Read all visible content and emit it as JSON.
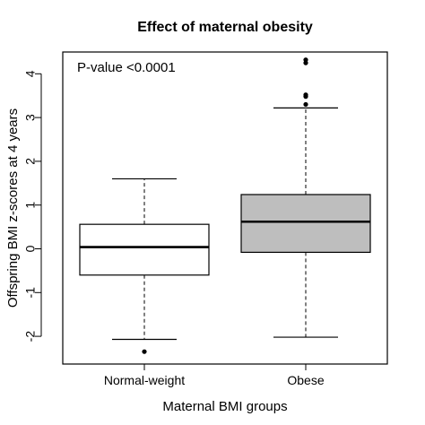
{
  "chart_data": {
    "type": "boxplot",
    "title": "Effect of maternal obesity",
    "xlabel": "Maternal BMI groups",
    "ylabel": "Offspring BMI z-scores at 4 years",
    "ylim": [
      -2.6,
      4.6
    ],
    "yticks": [
      -2,
      -1,
      0,
      1,
      2,
      3,
      4
    ],
    "ytick_labels": [
      "-2",
      "-1",
      "0",
      "1",
      "2",
      "3",
      "4"
    ],
    "grid": false,
    "annotation": "P-value <0.0001",
    "annotation_position": "top-left",
    "categories": [
      "Normal-weight",
      "Obese"
    ],
    "boxes": [
      {
        "category": "Normal-weight",
        "whisker_low": -2.07,
        "q1": -0.6,
        "median": 0.04,
        "q3": 0.56,
        "whisker_high": 1.6,
        "outliers": [
          -2.35
        ],
        "fill": "#ffffff"
      },
      {
        "category": "Obese",
        "whisker_low": -2.02,
        "q1": -0.08,
        "median": 0.62,
        "q3": 1.24,
        "whisker_high": 3.22,
        "outliers": [
          3.3,
          3.48,
          3.52,
          4.25,
          4.32
        ],
        "fill": "#bebebe"
      }
    ]
  }
}
